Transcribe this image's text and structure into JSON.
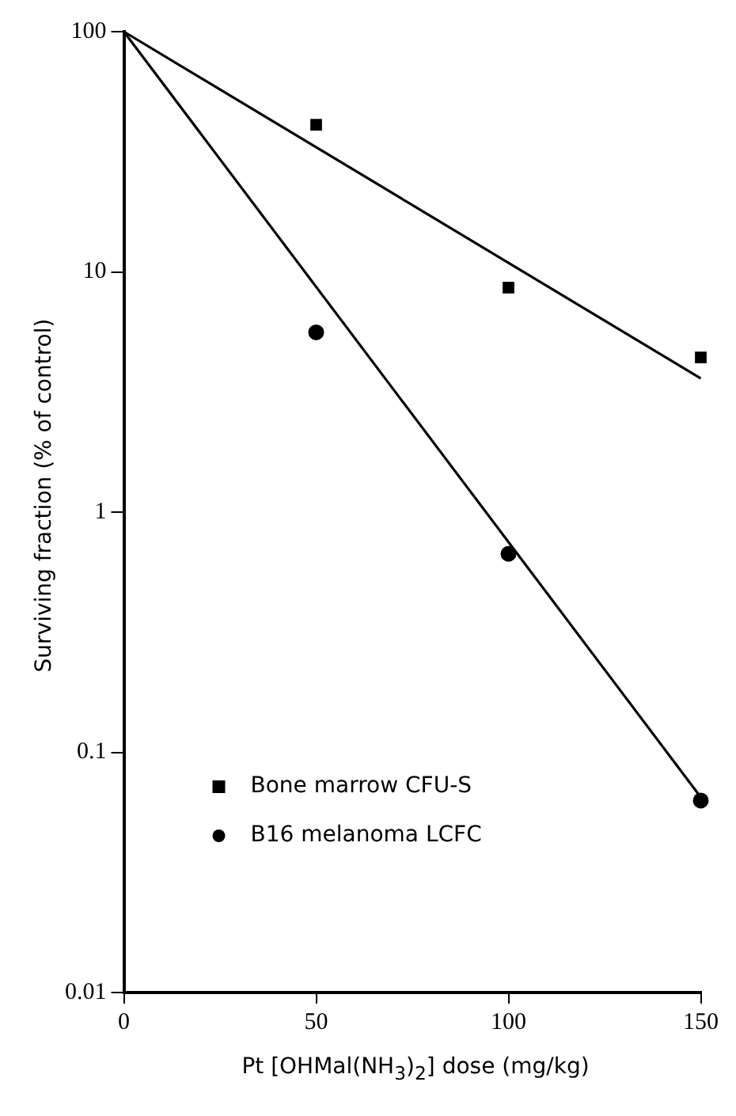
{
  "chart_data": {
    "type": "scatter",
    "xlabel": "Pt [OHMal(NH$_{3}$)$_{2}$] dose (mg/kg)",
    "ylabel": "Surviving fraction  (% of control)",
    "series": [
      {
        "name": "Bone marrow CFU-S",
        "color": "#000000",
        "marker": "square",
        "x": [
          50,
          100,
          150
        ],
        "values": [
          41,
          8.6,
          4.4
        ]
      },
      {
        "name": "B16 melanoma LCFC",
        "color": "#000000",
        "marker": "circle",
        "x": [
          50,
          100,
          150
        ],
        "values": [
          5.6,
          0.67,
          0.063
        ]
      },
      {
        "type": "line",
        "color": "#000000",
        "marker": "none",
        "line_style": "solid",
        "x": [
          0,
          150
        ],
        "values": [
          100,
          3.6
        ]
      },
      {
        "type": "line",
        "color": "#000000",
        "marker": "none",
        "line_style": "solid",
        "x": [
          0,
          150
        ],
        "values": [
          100,
          0.065
        ]
      }
    ],
    "log": "y",
    "xlim": [
      0,
      150
    ],
    "xticks": [
      0,
      50,
      100,
      150
    ],
    "ylim": [
      0.01,
      100
    ],
    "yticks": [
      0.01,
      0.1,
      1,
      10,
      100
    ],
    "legend": "bottom left"
  }
}
